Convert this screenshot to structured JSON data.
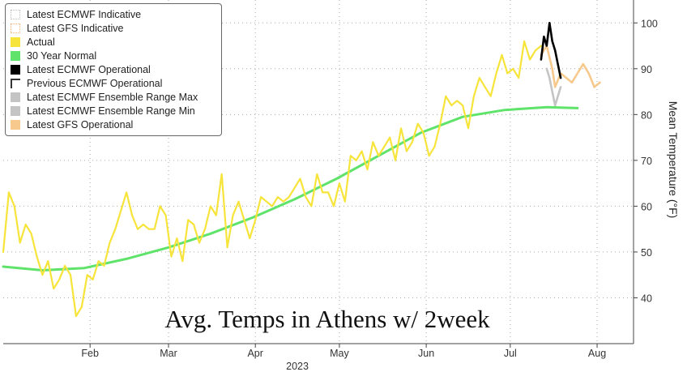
{
  "chart_data": {
    "type": "line",
    "overlay_text": "Avg. Temps in Athens w/ 2week",
    "ylabel": "Mean Temperature (°F)",
    "xlabel_year": "2023",
    "ylim": [
      30,
      105
    ],
    "y_ticks": [
      40,
      50,
      60,
      70,
      80,
      90,
      100
    ],
    "x_ticks": [
      "Feb",
      "Mar",
      "Apr",
      "May",
      "Jun",
      "Jul",
      "Aug"
    ],
    "x_tick_days": [
      32,
      60,
      91,
      121,
      152,
      182,
      213
    ],
    "x_domain_days": [
      1,
      226
    ],
    "grid": true,
    "legend_placement": "top-left",
    "legend": [
      {
        "label": "Latest ECMWF Indicative",
        "color": "#bbbbbb",
        "style": "dotted-box"
      },
      {
        "label": "Latest GFS Indicative",
        "color": "#f0b27a",
        "style": "dotted-box"
      },
      {
        "label": "Actual",
        "color": "#f7e43a",
        "style": "fill"
      },
      {
        "label": "30 Year Normal",
        "color": "#5fe36a",
        "style": "fill"
      },
      {
        "label": "Latest ECMWF Operational",
        "color": "#000000",
        "style": "fill"
      },
      {
        "label": "Previous ECMWF Operational",
        "color": "#333333",
        "style": "dashed-box"
      },
      {
        "label": "Latest ECMWF Ensemble Range Max",
        "color": "#c4c4c4",
        "style": "fill"
      },
      {
        "label": "Latest ECMWF Ensemble Range Min",
        "color": "#c4c4c4",
        "style": "fill"
      },
      {
        "label": "Latest GFS Operational",
        "color": "#f7c98c",
        "style": "fill"
      }
    ],
    "series": [
      {
        "name": "30 Year Normal",
        "color": "#5fe36a",
        "x": [
          1,
          15,
          30,
          45,
          60,
          75,
          90,
          105,
          120,
          135,
          150,
          165,
          180,
          195,
          206
        ],
        "values": [
          46.8,
          46.0,
          46.5,
          48.5,
          51.0,
          54.0,
          57.5,
          61.5,
          66.0,
          71.0,
          76.0,
          79.5,
          81.0,
          81.6,
          81.4
        ]
      },
      {
        "name": "Actual",
        "color": "#f7e43a",
        "x": [
          1,
          3,
          5,
          7,
          9,
          11,
          13,
          15,
          17,
          19,
          21,
          23,
          25,
          27,
          29,
          31,
          33,
          35,
          37,
          39,
          41,
          43,
          45,
          47,
          49,
          51,
          53,
          55,
          57,
          59,
          61,
          63,
          65,
          67,
          69,
          71,
          73,
          75,
          77,
          79,
          81,
          83,
          85,
          87,
          89,
          91,
          93,
          95,
          97,
          99,
          101,
          103,
          105,
          107,
          109,
          111,
          113,
          115,
          117,
          119,
          121,
          123,
          125,
          127,
          129,
          131,
          133,
          135,
          137,
          139,
          141,
          143,
          145,
          147,
          149,
          151,
          153,
          155,
          157,
          159,
          161,
          163,
          165,
          167,
          169,
          171,
          173,
          175,
          177,
          179,
          181,
          183,
          185,
          187,
          189,
          191,
          193
        ],
        "values": [
          50,
          63,
          60,
          52,
          56,
          54,
          49,
          45,
          48,
          42,
          44,
          47,
          45,
          36,
          38,
          45,
          44,
          48,
          47,
          52,
          55,
          59,
          63,
          58,
          55,
          56,
          55,
          55,
          60,
          58,
          49,
          53,
          48,
          57,
          56,
          52,
          55,
          60,
          58,
          67,
          51,
          58,
          61,
          57,
          53,
          57,
          62,
          61,
          60,
          62,
          61,
          62,
          64,
          66,
          62,
          60,
          67,
          63,
          63,
          60,
          65,
          61,
          71,
          70,
          72,
          68,
          74,
          71,
          73,
          75,
          70,
          77,
          72,
          74,
          78,
          76,
          71,
          73,
          78,
          84,
          82,
          83,
          82,
          77,
          84,
          88,
          86,
          84,
          89,
          93,
          89,
          90,
          88,
          96,
          92,
          94,
          95
        ]
      },
      {
        "name": "Latest ECMWF Operational",
        "color": "#000000",
        "x": [
          193,
          194,
          195,
          196,
          197,
          198,
          199,
          200
        ],
        "values": [
          92,
          97,
          95,
          100,
          96,
          94,
          91,
          88
        ]
      },
      {
        "name": "Latest GFS Operational",
        "color": "#f7c98c",
        "x": [
          193,
          195,
          197,
          198,
          200,
          202,
          204,
          206,
          208,
          210,
          212,
          214
        ],
        "values": [
          93,
          95,
          90,
          86,
          89,
          88,
          87,
          89,
          91,
          89,
          86,
          87
        ]
      },
      {
        "name": "Latest ECMWF Ensemble Range Min",
        "color": "#c4c4c4",
        "x": [
          195,
          196,
          197,
          198,
          199,
          200
        ],
        "values": [
          90,
          88,
          85,
          82,
          84,
          86
        ]
      }
    ]
  }
}
